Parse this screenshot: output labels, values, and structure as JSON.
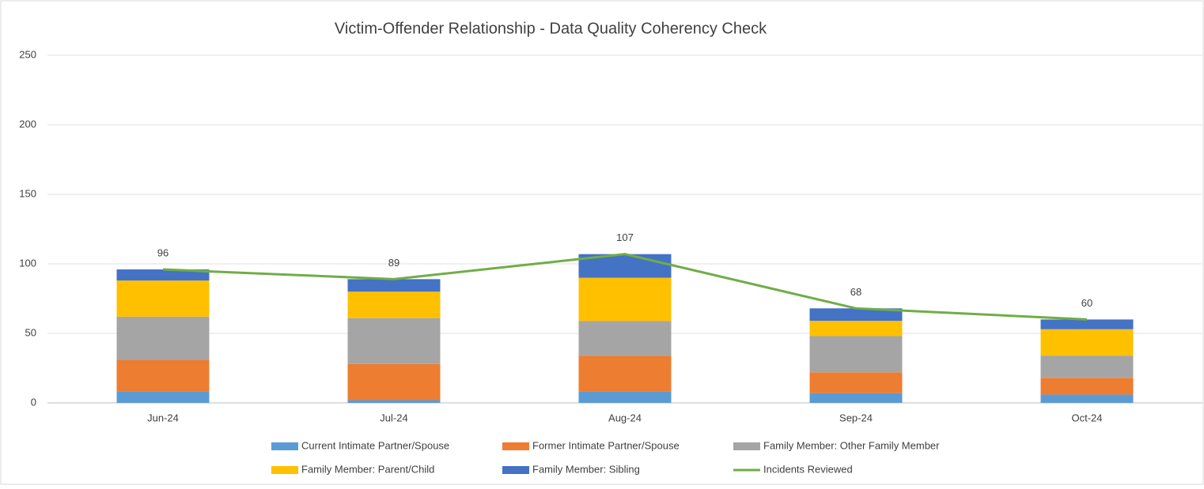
{
  "chart_data": {
    "type": "bar",
    "stacked": true,
    "title": "Victim-Offender Relationship - Data Quality Coherency Check",
    "categories": [
      "Jun-24",
      "Jul-24",
      "Aug-24",
      "Sep-24",
      "Oct-24"
    ],
    "series": [
      {
        "name": "Current Intimate Partner/Spouse",
        "color": "#5b9bd5",
        "values": [
          8,
          2,
          8,
          7,
          6
        ]
      },
      {
        "name": "Former Intimate Partner/Spouse",
        "color": "#ed7d31",
        "values": [
          23,
          26,
          26,
          15,
          12
        ]
      },
      {
        "name": "Family Member: Other Family Member",
        "color": "#a5a5a5",
        "values": [
          31,
          33,
          25,
          26,
          16
        ]
      },
      {
        "name": "Family Member: Parent/Child",
        "color": "#ffc000",
        "values": [
          26,
          19,
          31,
          11,
          19
        ]
      },
      {
        "name": "Family Member: Sibling",
        "color": "#4472c4",
        "values": [
          8,
          9,
          17,
          9,
          7
        ]
      },
      {
        "name": "Incidents Reviewed",
        "color": "#70ad47",
        "type": "line",
        "data_labels": true,
        "values": [
          96,
          89,
          107,
          68,
          60
        ]
      }
    ],
    "ylim": [
      0,
      250
    ],
    "yticks": [
      0,
      50,
      100,
      150,
      200,
      250
    ],
    "grid": true,
    "legend": "bottom"
  }
}
